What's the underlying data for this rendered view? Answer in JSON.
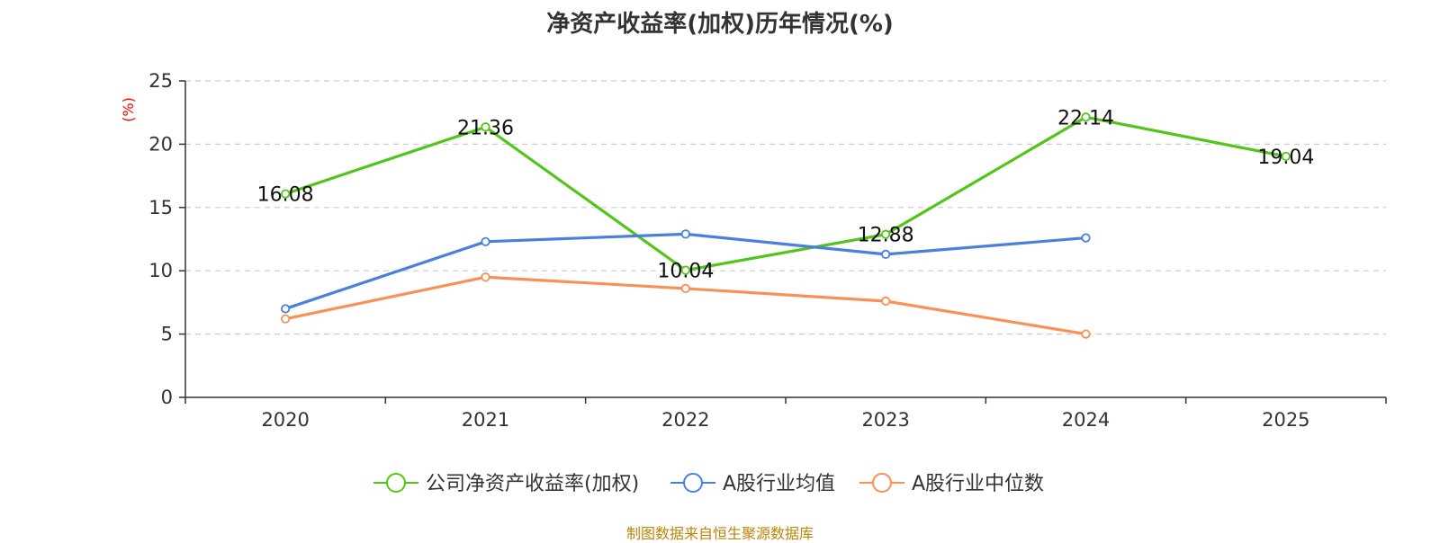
{
  "chart_data": {
    "type": "line",
    "title": "净资产收益率(加权)历年情况(%)",
    "ylabel": "(%)",
    "categories": [
      "2020",
      "2021",
      "2022",
      "2023",
      "2024",
      "2025"
    ],
    "ylim": [
      0,
      25
    ],
    "yticks": [
      0,
      5,
      10,
      15,
      20,
      25
    ],
    "grid": true,
    "legend": "bottom-center",
    "series": [
      {
        "name": "公司净资产收益率(加权)",
        "color": "#52c41a",
        "show_labels": true,
        "values": [
          16.08,
          21.36,
          10.04,
          12.88,
          22.14,
          19.04
        ]
      },
      {
        "name": "A股行业均值",
        "color": "#4a7fdc",
        "show_labels": false,
        "values": [
          7.0,
          12.3,
          12.9,
          11.3,
          12.6,
          null
        ]
      },
      {
        "name": "A股行业中位数",
        "color": "#f79156",
        "show_labels": false,
        "values": [
          6.2,
          9.5,
          8.6,
          7.6,
          5.0,
          null
        ]
      }
    ]
  },
  "source": "制图数据来自恒生聚源数据库"
}
